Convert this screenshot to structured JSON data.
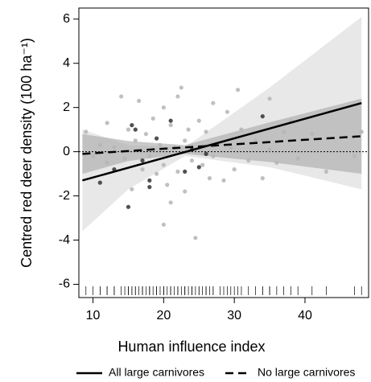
{
  "chart_data": {
    "type": "scatter",
    "xlabel": "Human influence index",
    "ylabel": "Centred red deer density (100 ha⁻¹)",
    "xlim": [
      8,
      49
    ],
    "ylim": [
      -6.6,
      6.5
    ],
    "xticks": [
      10,
      20,
      30,
      40
    ],
    "yticks": [
      -6,
      -4,
      -2,
      0,
      2,
      4,
      6
    ],
    "reference_line": 0,
    "bands": [
      {
        "color": "#d9d9d9",
        "x": [
          8.5,
          15,
          23,
          35,
          48
        ],
        "lower": [
          -3.6,
          -1.7,
          -0.2,
          -0.7,
          -1.7
        ],
        "upper": [
          1.0,
          0.3,
          0.2,
          2.9,
          6.1
        ]
      },
      {
        "color": "#a6a6a6",
        "x": [
          8.5,
          15,
          23,
          35,
          48
        ],
        "lower": [
          -1.0,
          -0.42,
          -0.1,
          -0.47,
          -1.0
        ],
        "upper": [
          0.8,
          0.48,
          0.3,
          1.33,
          2.4
        ]
      }
    ],
    "series": [
      {
        "name": "All large carnivores",
        "color": "#000000",
        "dash": "solid",
        "x": [
          8.5,
          48
        ],
        "values": [
          -1.3,
          2.2
        ]
      },
      {
        "name": "No large carnivores",
        "color": "#000000",
        "dash": "dashed",
        "x": [
          8.5,
          48
        ],
        "values": [
          -0.1,
          0.7
        ]
      }
    ],
    "points": [
      {
        "color": "#b5b5b5",
        "x": [
          9,
          10,
          11,
          12,
          12,
          13,
          14,
          14.5,
          15,
          15.5,
          16,
          16.5,
          17,
          17.5,
          18,
          18.5,
          19,
          19.5,
          20,
          20,
          20,
          20.5,
          21,
          21,
          21.5,
          22,
          22,
          22.5,
          23,
          23,
          23.5,
          24,
          24.5,
          25,
          25.5,
          26,
          26.5,
          27,
          27,
          28,
          28.5,
          29,
          29.5,
          30,
          30.5,
          31,
          32,
          33,
          34,
          35,
          35,
          36,
          37,
          38,
          39,
          41,
          43,
          47,
          48
        ],
        "y": [
          0.9,
          -0.2,
          0.3,
          -0.5,
          1.3,
          0.2,
          2.5,
          -0.3,
          1.0,
          -1.7,
          0.5,
          2.3,
          -0.8,
          0.8,
          -0.2,
          1.5,
          -1.0,
          0.3,
          2.0,
          -0.6,
          -3.3,
          -1.5,
          1.2,
          -2.3,
          0.2,
          2.5,
          -0.9,
          2.9,
          0.5,
          -1.8,
          1.0,
          -0.4,
          -3.9,
          1.4,
          -0.6,
          0.9,
          -1.2,
          2.2,
          -0.2,
          0.4,
          -1.3,
          1.8,
          0.2,
          -0.8,
          2.8,
          1.0,
          -0.4,
          0.5,
          -1.2,
          2.4,
          0.1,
          -0.5,
          0.9,
          1.4,
          -0.3,
          0.8,
          -0.9,
          -0.2,
          0.9
        ]
      },
      {
        "color": "#333333",
        "x": [
          11,
          13,
          15,
          15.5,
          16,
          17,
          18,
          18,
          19,
          21,
          23,
          24,
          25,
          26,
          34
        ],
        "y": [
          -1.4,
          -0.8,
          -2.5,
          1.2,
          1.0,
          -0.4,
          -1.3,
          -1.6,
          0.6,
          1.4,
          -0.9,
          0.1,
          -0.7,
          -0.1,
          1.6
        ]
      }
    ]
  }
}
